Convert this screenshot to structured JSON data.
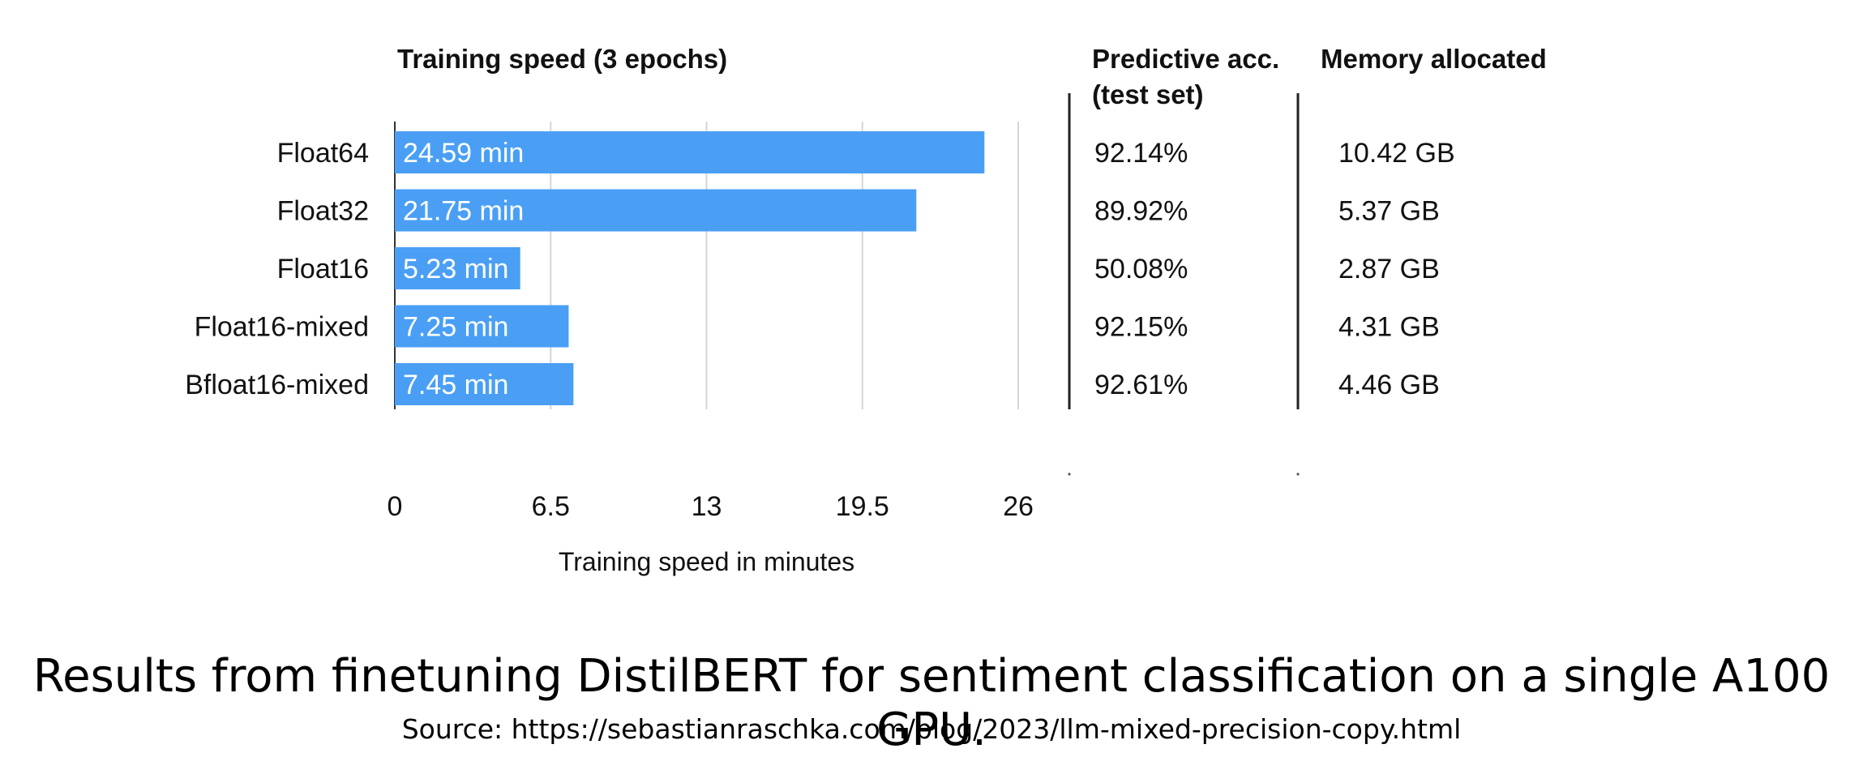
{
  "chart_data": {
    "type": "bar",
    "orientation": "horizontal",
    "title": "Training speed (3 epochs)",
    "xlabel": "Training speed in minutes",
    "ylabel": "",
    "xlim": [
      0,
      26
    ],
    "xticks": [
      0,
      6.5,
      13,
      19.5,
      26
    ],
    "xtick_labels": [
      "0",
      "6.5",
      "13",
      "19.5",
      "26"
    ],
    "grid": true,
    "bar_color": "#4a9ff5",
    "categories": [
      "Float64",
      "Float32",
      "Float16",
      "Float16-mixed",
      "Bfloat16-mixed"
    ],
    "values": [
      24.59,
      21.75,
      5.23,
      7.25,
      7.45
    ],
    "data_labels": [
      "24.59 min",
      "21.75 min",
      "5.23 min",
      "7.25 min",
      "7.45 min"
    ],
    "table_columns": [
      {
        "header_lines": [
          "Predictive acc.",
          "(test set)"
        ],
        "values": [
          "92.14%",
          "89.92%",
          "50.08%",
          "92.15%",
          "92.61%"
        ]
      },
      {
        "header_lines": [
          "Memory allocated"
        ],
        "values": [
          "10.42 GB",
          "5.37 GB",
          "2.87 GB",
          "4.31 GB",
          "4.46 GB"
        ]
      }
    ]
  },
  "caption": {
    "text": "Results from finetuning DistilBERT for sentiment classification on a single A100 GPU.",
    "source": "Source: https://sebastianraschka.com/blog/2023/llm-mixed-precision-copy.html"
  }
}
